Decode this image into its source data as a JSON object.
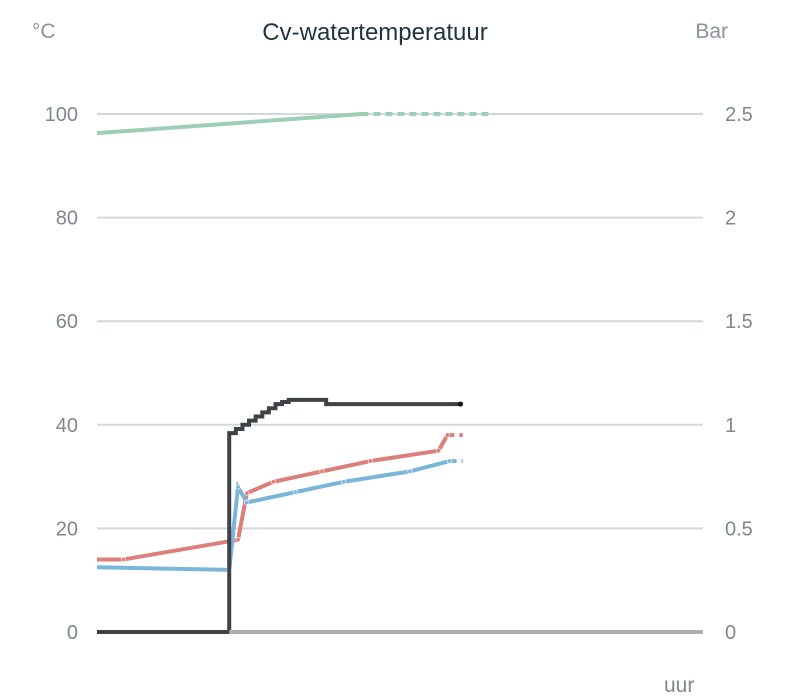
{
  "chart_data": {
    "type": "line",
    "title": "Cv-watertemperatuur",
    "y_left_unit": "°C",
    "y_right_unit": "Bar",
    "x_unit": "uur",
    "y_left_ticks": [
      0,
      20,
      40,
      60,
      80,
      100
    ],
    "y_left_tick_labels": [
      "0",
      "20",
      "40",
      "60",
      "80",
      "100"
    ],
    "y_right_ticks": [
      0,
      0.5,
      1,
      1.5,
      2,
      2.5
    ],
    "y_right_tick_labels": [
      "0",
      "0.5",
      "1",
      "1.5",
      "2",
      "2.5"
    ],
    "y_left_range": [
      0,
      100
    ],
    "y_right_range": [
      0,
      2.5
    ],
    "grid": true,
    "series": [
      {
        "color": "#9ccfb6",
        "axis": "left",
        "points": [
          [
            0,
            96.3
          ],
          [
            12,
            100
          ]
        ],
        "projection": [
          [
            12,
            100
          ],
          [
            18,
            100
          ]
        ]
      },
      {
        "color": "#dc7f7a",
        "axis": "left",
        "points": [
          [
            0,
            14
          ],
          [
            1.2,
            14
          ],
          [
            6.4,
            17.8
          ],
          [
            6.8,
            26.8
          ],
          [
            8,
            29
          ],
          [
            10.2,
            31
          ],
          [
            12.4,
            33
          ],
          [
            15.5,
            35
          ],
          [
            15.9,
            38
          ]
        ],
        "projection": [
          [
            15.9,
            38
          ],
          [
            16.6,
            38
          ]
        ]
      },
      {
        "color": "#7ab6d9",
        "axis": "left",
        "points": [
          [
            0,
            12.5
          ],
          [
            6,
            12
          ],
          [
            6.4,
            28
          ],
          [
            6.8,
            25
          ],
          [
            9,
            27
          ],
          [
            11.2,
            29
          ],
          [
            14.2,
            31
          ],
          [
            16,
            33
          ]
        ],
        "projection": [
          [
            16,
            33
          ],
          [
            16.6,
            33
          ]
        ]
      },
      {
        "color": "#3f4247",
        "axis": "right",
        "step": true,
        "points": [
          [
            0,
            0
          ],
          [
            6,
            0
          ],
          [
            6,
            0.96
          ],
          [
            6.3,
            0.98
          ],
          [
            6.6,
            1.0
          ],
          [
            6.9,
            1.02
          ],
          [
            7.2,
            1.04
          ],
          [
            7.5,
            1.06
          ],
          [
            7.8,
            1.08
          ],
          [
            8.1,
            1.1
          ],
          [
            8.4,
            1.11
          ],
          [
            8.7,
            1.12
          ],
          [
            10.2,
            1.12
          ],
          [
            10.4,
            1.1
          ],
          [
            12.8,
            1.1
          ],
          [
            16.5,
            1.1
          ]
        ]
      },
      {
        "color": "#aab0b6",
        "axis": "right",
        "points": [
          [
            6,
            0
          ],
          [
            27.5,
            0
          ]
        ]
      }
    ]
  }
}
